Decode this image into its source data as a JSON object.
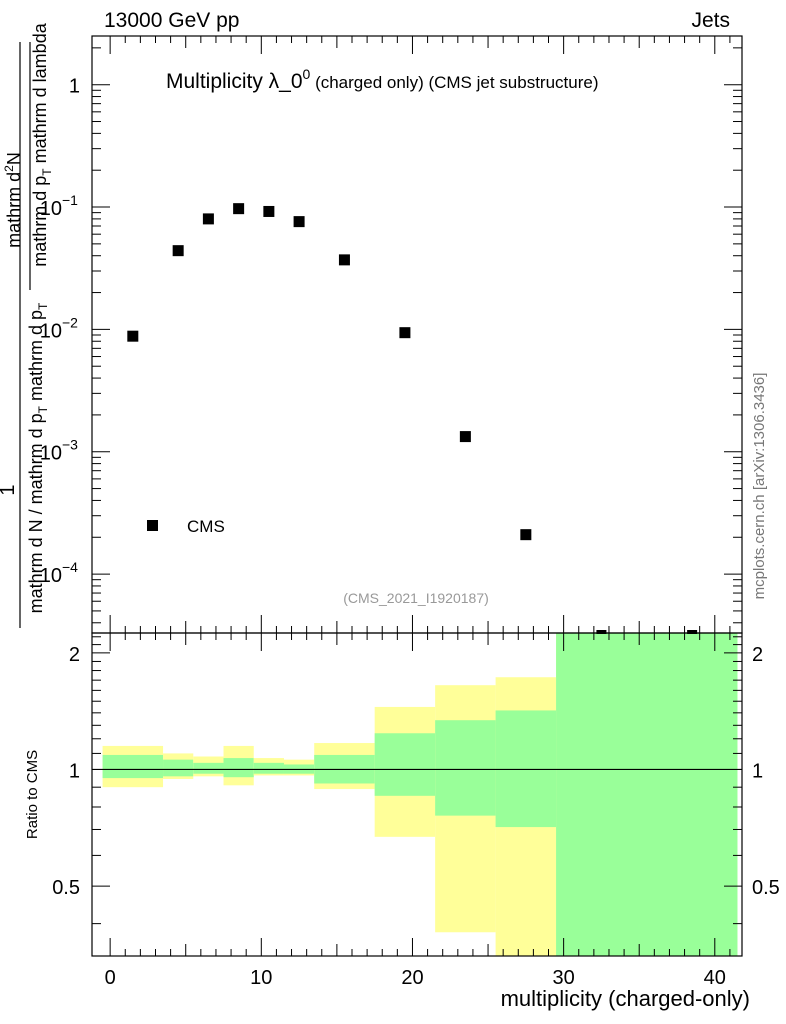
{
  "header": {
    "left": "13000 GeV pp",
    "right": "Jets"
  },
  "side_label": "mcplots.cern.ch [arXiv:1306.3436]",
  "chart_data": [
    {
      "type": "scatter",
      "title": "Multiplicity λ_0",
      "title_sup": "0",
      "title_suffix": "(charged only) (CMS jet substructure)",
      "watermark": "(CMS_2021_I1920187)",
      "ylabel_num_top": "mathrm d",
      "ylabel_num_sup": "2",
      "ylabel_num_bottom": "N",
      "ylabel_den": "mathrm d p",
      "ylabel_den_sub": "T",
      "ylabel_den_rest": " mathrm d lambda",
      "ylabel_pre_num": "1",
      "ylabel_pre_den": "mathrm d N / mathrm d p",
      "ylabel_pre_den_sub": "T",
      "ylabel_pre_den_rest": " mathrm d p",
      "ylabel_pre_den_sub2": "T",
      "yscale": "log",
      "ylim": [
        3.3e-05,
        2.5
      ],
      "xlim": [
        -1.2,
        41.8
      ],
      "yticks": [
        {
          "value": 1,
          "label": "1",
          "sup": ""
        },
        {
          "value": 0.1,
          "label": "10",
          "sup": "−1"
        },
        {
          "value": 0.01,
          "label": "10",
          "sup": "−2"
        },
        {
          "value": 0.001,
          "label": "10",
          "sup": "−3"
        },
        {
          "value": 0.0001,
          "label": "10",
          "sup": "−4"
        }
      ],
      "legend": {
        "position": "bottom-left",
        "entries": [
          "CMS"
        ]
      },
      "series": [
        {
          "name": "CMS",
          "x": [
            1.5,
            4.5,
            6.5,
            8.5,
            10.5,
            12.5,
            15.5,
            19.5,
            23.5,
            27.5
          ],
          "y": [
            0.0088,
            0.044,
            0.08,
            0.097,
            0.092,
            0.076,
            0.037,
            0.0094,
            0.00133,
            0.00021
          ]
        }
      ],
      "offscale_markers_x": [
        32.5,
        38.5
      ]
    },
    {
      "type": "area",
      "ylabel": "Ratio to CMS",
      "xlabel": "multiplicity (charged-only)",
      "xlim": [
        -1.2,
        41.8
      ],
      "ylim": [
        0.33,
        2.25
      ],
      "xticks": [
        0,
        10,
        20,
        30,
        40
      ],
      "yticks": [
        0.5,
        1,
        2
      ],
      "reference_line": 1,
      "bands": [
        {
          "x0": -0.5,
          "x1": 3.5,
          "outer": [
            0.9,
            1.15
          ],
          "inner": [
            0.95,
            1.09
          ]
        },
        {
          "x0": 3.5,
          "x1": 5.5,
          "outer": [
            0.945,
            1.1
          ],
          "inner": [
            0.96,
            1.06
          ]
        },
        {
          "x0": 5.5,
          "x1": 7.5,
          "outer": [
            0.96,
            1.08
          ],
          "inner": [
            0.975,
            1.04
          ]
        },
        {
          "x0": 7.5,
          "x1": 9.5,
          "outer": [
            0.91,
            1.15
          ],
          "inner": [
            0.955,
            1.07
          ]
        },
        {
          "x0": 9.5,
          "x1": 11.5,
          "outer": [
            0.965,
            1.07
          ],
          "inner": [
            0.975,
            1.04
          ]
        },
        {
          "x0": 11.5,
          "x1": 13.5,
          "outer": [
            0.965,
            1.06
          ],
          "inner": [
            0.975,
            1.03
          ]
        },
        {
          "x0": 13.5,
          "x1": 17.5,
          "outer": [
            0.89,
            1.17
          ],
          "inner": [
            0.92,
            1.09
          ]
        },
        {
          "x0": 17.5,
          "x1": 21.5,
          "outer": [
            0.67,
            1.45
          ],
          "inner": [
            0.855,
            1.24
          ]
        },
        {
          "x0": 21.5,
          "x1": 25.5,
          "outer": [
            0.38,
            1.65
          ],
          "inner": [
            0.76,
            1.34
          ]
        },
        {
          "x0": 25.5,
          "x1": 29.5,
          "outer": [
            0.33,
            1.73
          ],
          "inner": [
            0.71,
            1.42
          ]
        },
        {
          "x0": 29.5,
          "x1": 41.5,
          "outer": [
            0.33,
            2.25
          ],
          "inner": [
            0.33,
            2.25
          ]
        }
      ],
      "colors": {
        "outer": "#ffff99",
        "inner": "#99ff99",
        "line": "#000000"
      }
    }
  ]
}
